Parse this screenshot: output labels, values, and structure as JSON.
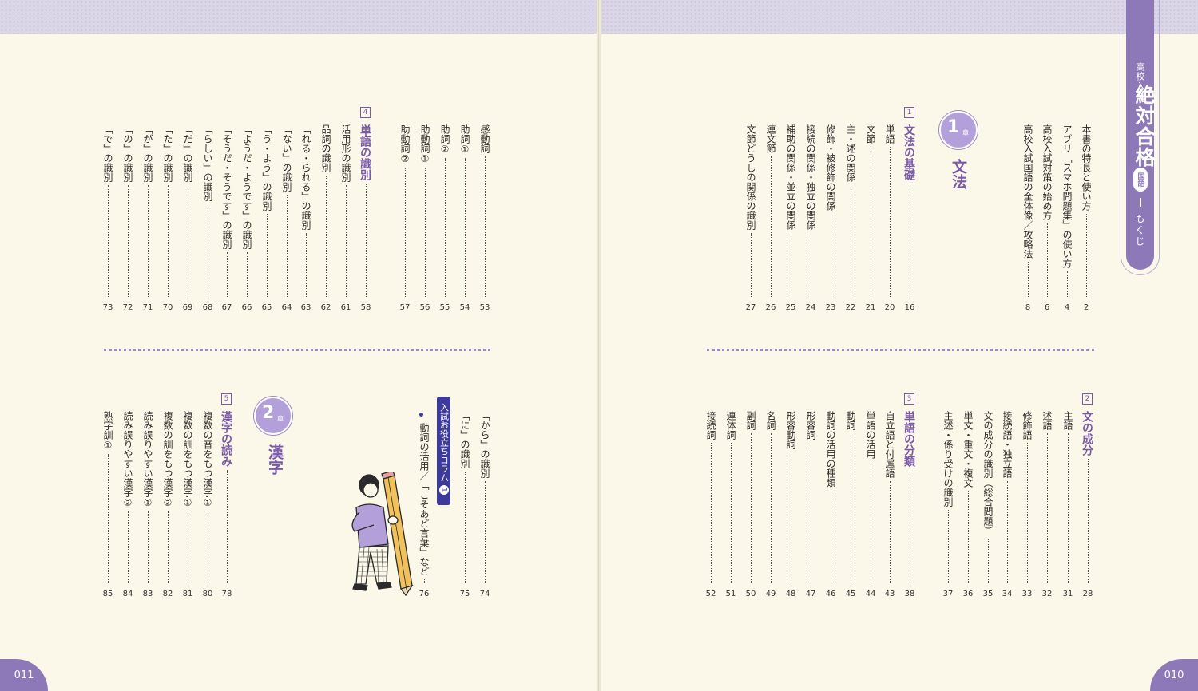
{
  "tab": {
    "small": "高校入試",
    "big": "絶対合格",
    "pill": "国語",
    "mokuji": "もくじ"
  },
  "page_numbers": {
    "left": "011",
    "right": "010"
  },
  "intro": [
    {
      "text": "本書の特長と使い方",
      "page": "2"
    },
    {
      "text": "アプリ「スマホ問題集」の使い方",
      "page": "4"
    },
    {
      "text": "高校入試対策の始め方",
      "page": "6"
    },
    {
      "text": "高校入試国語の全体像／攻略法",
      "page": "8"
    }
  ],
  "chapter1": {
    "num": "1",
    "kanji": "章",
    "title": "文法"
  },
  "chapter2": {
    "num": "2",
    "kanji": "章",
    "title": "漢字"
  },
  "sections": [
    {
      "num": "1",
      "title": "文法の基礎",
      "page": "16",
      "entries": [
        {
          "text": "単語",
          "page": "20"
        },
        {
          "text": "文節",
          "page": "21"
        },
        {
          "text": "主・述の関係",
          "page": "22"
        },
        {
          "text": "修飾・被修飾の関係",
          "page": "23"
        },
        {
          "text": "接続の関係・独立の関係",
          "page": "24"
        },
        {
          "text": "補助の関係・並立の関係",
          "page": "25"
        },
        {
          "text": "連文節",
          "page": "26"
        },
        {
          "text": "文節どうしの関係の識別",
          "page": "27"
        }
      ]
    },
    {
      "num": "2",
      "title": "文の成分",
      "page": "28",
      "entries": [
        {
          "text": "主語",
          "page": "31"
        },
        {
          "text": "述語",
          "page": "32"
        },
        {
          "text": "修飾語",
          "page": "33"
        },
        {
          "text": "接続語・独立語",
          "page": "34"
        },
        {
          "text": "文の成分の識別（総合問題）",
          "page": "35"
        },
        {
          "text": "単文・重文・複文",
          "page": "36"
        },
        {
          "text": "主述・係り受けの識別",
          "page": "37"
        }
      ]
    },
    {
      "num": "3",
      "title": "単語の分類",
      "page": "38",
      "entries": [
        {
          "text": "自立語と付属語",
          "page": "43"
        },
        {
          "text": "単語の活用",
          "page": "44"
        },
        {
          "text": "動詞",
          "page": "45"
        },
        {
          "text": "動詞の活用の種類",
          "page": "46"
        },
        {
          "text": "形容詞",
          "page": "47"
        },
        {
          "text": "形容動詞",
          "page": "48"
        },
        {
          "text": "名詞",
          "page": "49"
        },
        {
          "text": "副詞",
          "page": "50"
        },
        {
          "text": "連体詞",
          "page": "51"
        },
        {
          "text": "接続詞",
          "page": "52"
        }
      ]
    },
    {
      "num": "",
      "title": "",
      "page": "",
      "entries": [
        {
          "text": "感動詞",
          "page": "53"
        },
        {
          "text": "助詞①",
          "page": "54"
        },
        {
          "text": "助詞②",
          "page": "55"
        },
        {
          "text": "助動詞①",
          "page": "56"
        },
        {
          "text": "助動詞②",
          "page": "57"
        }
      ]
    },
    {
      "num": "4",
      "title": "単語の識別",
      "page": "58",
      "entries": [
        {
          "text": "活用形の識別",
          "page": "61"
        },
        {
          "text": "品詞の識別",
          "page": "62"
        },
        {
          "text": "「れる・られる」の識別",
          "page": "63"
        },
        {
          "text": "「ない」の識別",
          "page": "64"
        },
        {
          "text": "「う・よう」の識別",
          "page": "65"
        },
        {
          "text": "「ようだ・ようです」の識別",
          "page": "66"
        },
        {
          "text": "「そうだ・そうです」の識別",
          "page": "67"
        },
        {
          "text": "「らしい」の識別",
          "page": "68"
        },
        {
          "text": "「だ」の識別",
          "page": "69"
        },
        {
          "text": "「た」の識別",
          "page": "70"
        },
        {
          "text": "「が」の識別",
          "page": "71"
        },
        {
          "text": "「の」の識別",
          "page": "72"
        },
        {
          "text": "「で」の識別",
          "page": "73"
        }
      ]
    },
    {
      "num": "",
      "title": "",
      "page": "",
      "entries": [
        {
          "text": "「から」の識別",
          "page": "74"
        },
        {
          "text": "「に」の識別",
          "page": "75"
        }
      ]
    },
    {
      "num": "5",
      "title": "漢字の読み",
      "page": "78",
      "entries": [
        {
          "text": "複数の音をもつ漢字①",
          "page": "80"
        },
        {
          "text": "複数の訓をもつ漢字①",
          "page": "81"
        },
        {
          "text": "複数の訓をもつ漢字②",
          "page": "82"
        },
        {
          "text": "読み誤りやすい漢字①",
          "page": "83"
        },
        {
          "text": "読み誤りやすい漢字②",
          "page": "84"
        },
        {
          "text": "熟字訓①",
          "page": "85"
        }
      ]
    }
  ],
  "column": {
    "label": "入試お役立ちコラム",
    "num": "1",
    "text": "動詞の活用／「こそあど言葉」など",
    "page": "76"
  },
  "colors": {
    "accent": "#8d79b8",
    "heading": "#7a5aa6",
    "column_badge": "#3c3a9a"
  }
}
